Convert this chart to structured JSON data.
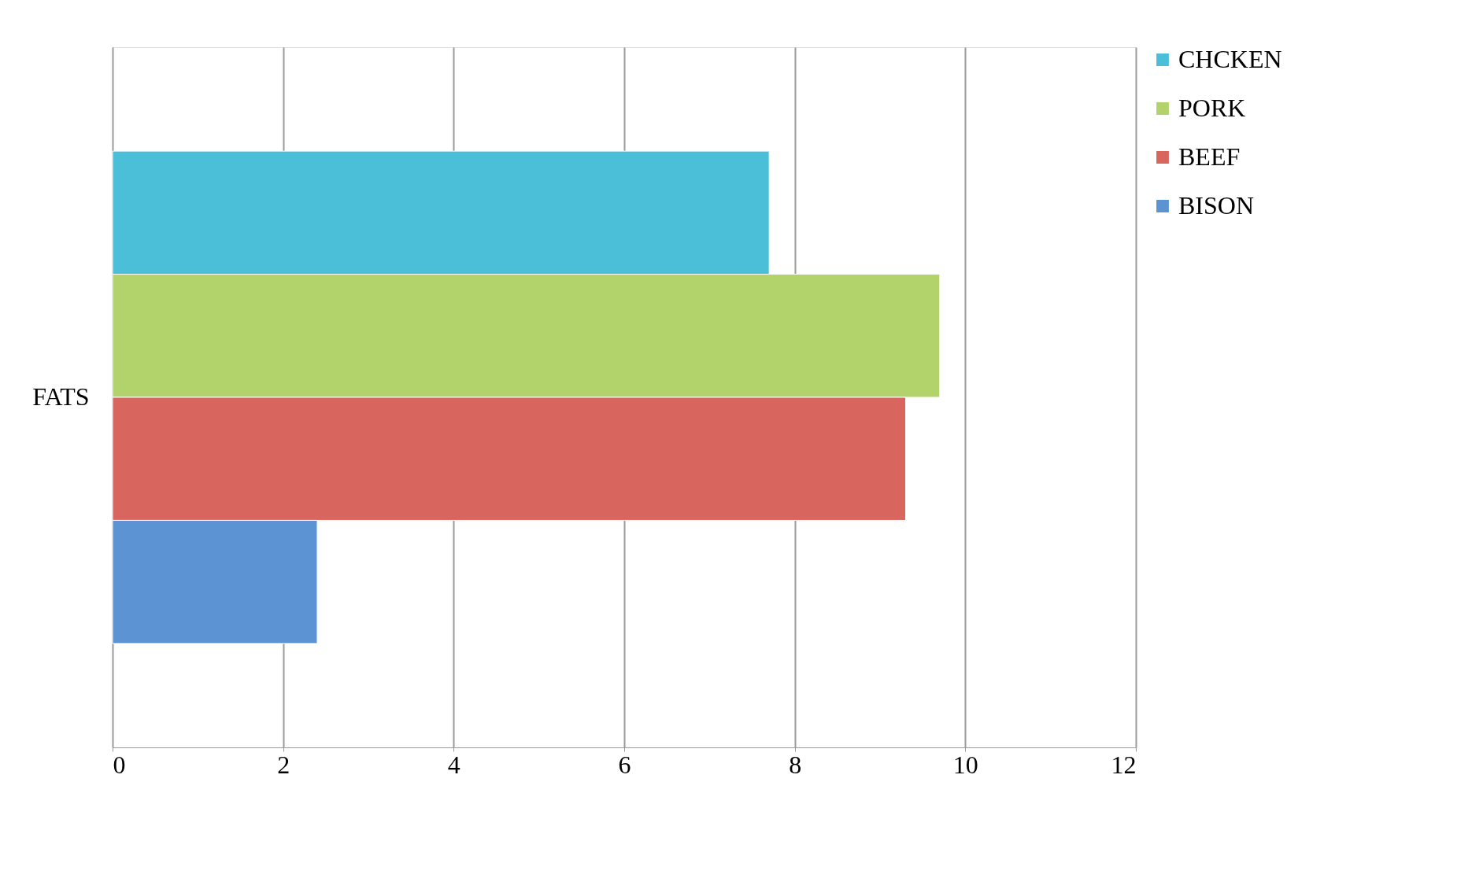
{
  "chart_data": {
    "type": "bar",
    "orientation": "horizontal",
    "categories": [
      "FATS"
    ],
    "series": [
      {
        "name": "CHCKEN",
        "color": "#4bbfd8",
        "values": [
          7.7
        ]
      },
      {
        "name": "PORK",
        "color": "#b2d36b",
        "values": [
          9.7
        ]
      },
      {
        "name": "BEEF",
        "color": "#d9655f",
        "values": [
          9.3
        ]
      },
      {
        "name": "BISON",
        "color": "#5b93d3",
        "values": [
          2.4
        ]
      }
    ],
    "xlim": [
      0,
      12
    ],
    "xticks": [
      0,
      2,
      4,
      6,
      8,
      10,
      12
    ],
    "grid": "x",
    "legend": "right"
  }
}
